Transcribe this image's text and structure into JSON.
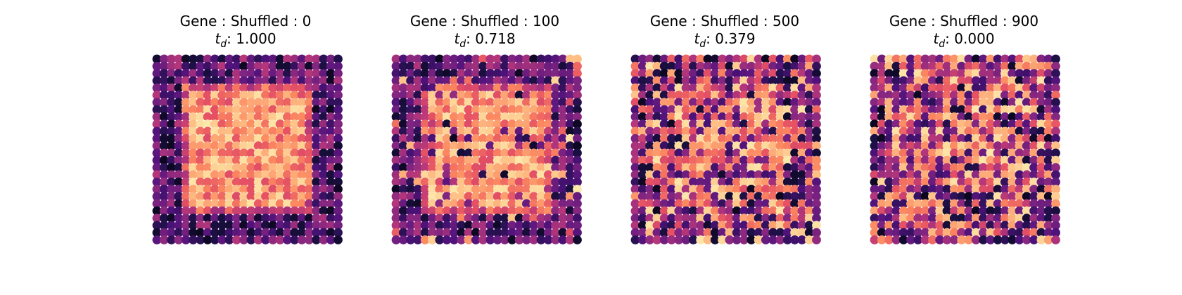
{
  "chart_data": [
    {
      "type": "scatter",
      "title": "Gene : Shuffled : 0",
      "td_label": "t",
      "td_subscript": "d",
      "td_value": "1.000",
      "shuffled": 0,
      "grid_size": 26,
      "colormap": "magma",
      "pattern": "Bright square domain in center on dark background"
    },
    {
      "type": "scatter",
      "title": "Gene : Shuffled : 100",
      "td_label": "t",
      "td_subscript": "d",
      "td_value": "0.718",
      "shuffled": 100,
      "grid_size": 26,
      "colormap": "magma",
      "pattern": "Bright square domain with a few swapped spots"
    },
    {
      "type": "scatter",
      "title": "Gene : Shuffled : 500",
      "td_label": "t",
      "td_subscript": "d",
      "td_value": "0.379",
      "shuffled": 500,
      "grid_size": 26,
      "colormap": "magma",
      "pattern": "Square domain largely dissolved"
    },
    {
      "type": "scatter",
      "title": "Gene : Shuffled : 900",
      "td_label": "t",
      "td_subscript": "d",
      "td_value": "0.000",
      "shuffled": 900,
      "grid_size": 26,
      "colormap": "magma",
      "pattern": "Spatially random expression"
    }
  ],
  "colors": {
    "background": "#ffffff",
    "colormap_low": "#000004",
    "colormap_high": "#fcfdbf"
  }
}
